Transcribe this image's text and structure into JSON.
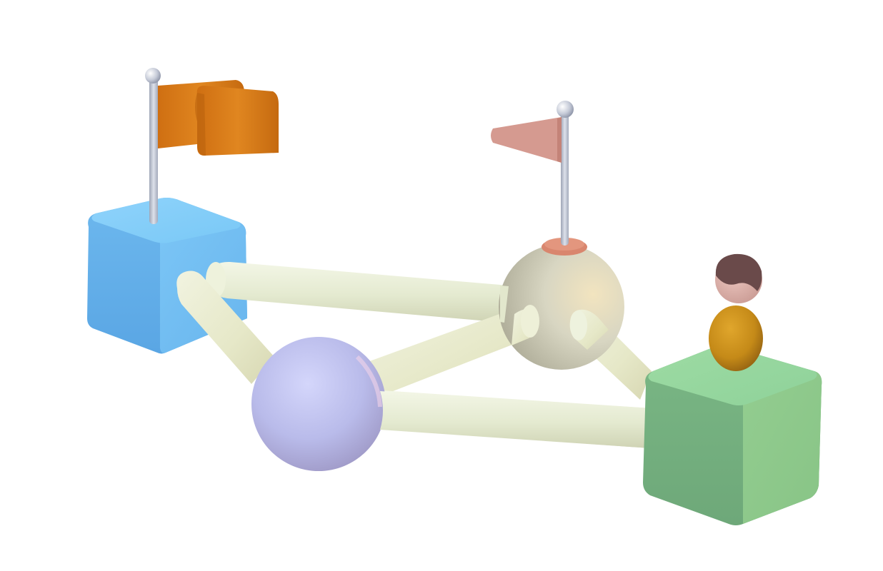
{
  "scene": {
    "subject": "3d-network-illustration",
    "background_color": "#ffffff",
    "colors": {
      "blue_cube": "#6fbff2",
      "green_cube": "#85c98d",
      "lavender_sphere": "#b7b9ec",
      "beige_sphere": "#d9d8c4",
      "connector_tube": "#e6ecd2",
      "orange_flag": "#d8781a",
      "pink_flag": "#d79a90",
      "flag_pole": "#c3c8d4",
      "person_hair": "#6a4a4a",
      "person_face": "#dcb3ad",
      "person_body": "#c58a18"
    },
    "objects": [
      {
        "name": "blue-cube",
        "kind": "cube"
      },
      {
        "name": "green-cube",
        "kind": "cube"
      },
      {
        "name": "lavender-sphere",
        "kind": "sphere"
      },
      {
        "name": "beige-sphere",
        "kind": "sphere"
      },
      {
        "name": "orange-flag",
        "kind": "flag"
      },
      {
        "name": "pink-flag",
        "kind": "flag"
      },
      {
        "name": "person-figure",
        "kind": "figure"
      }
    ],
    "connections": [
      [
        "blue-cube",
        "beige-sphere"
      ],
      [
        "blue-cube",
        "lavender-sphere"
      ],
      [
        "lavender-sphere",
        "beige-sphere"
      ],
      [
        "lavender-sphere",
        "green-cube"
      ],
      [
        "beige-sphere",
        "green-cube"
      ]
    ]
  }
}
